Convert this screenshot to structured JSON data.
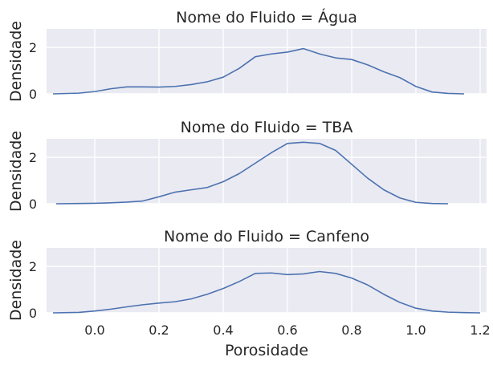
{
  "chart_data": {
    "type": "line",
    "xlabel": "Porosidade",
    "ylabel": "Densidade",
    "xlim": [
      -0.15,
      1.22
    ],
    "ylim": [
      0,
      2.8
    ],
    "x_ticks": [
      "0.0",
      "0.2",
      "0.4",
      "0.6",
      "0.8",
      "1.0",
      "1.2"
    ],
    "x_tick_values": [
      0.0,
      0.2,
      0.4,
      0.6,
      0.8,
      1.0,
      1.2
    ],
    "y_ticks": [
      "0",
      "2"
    ],
    "y_tick_values": [
      0,
      2
    ],
    "grid": true,
    "line_color": "#4c72b0",
    "panels": [
      {
        "title": "Nome do Fluido = Água",
        "x": [
          -0.13,
          -0.05,
          0.0,
          0.05,
          0.1,
          0.15,
          0.2,
          0.25,
          0.3,
          0.35,
          0.4,
          0.45,
          0.5,
          0.55,
          0.6,
          0.65,
          0.7,
          0.75,
          0.8,
          0.85,
          0.9,
          0.95,
          1.0,
          1.05,
          1.1,
          1.15
        ],
        "y": [
          0.0,
          0.03,
          0.1,
          0.22,
          0.3,
          0.3,
          0.29,
          0.32,
          0.4,
          0.52,
          0.72,
          1.1,
          1.6,
          1.72,
          1.8,
          1.95,
          1.72,
          1.55,
          1.48,
          1.25,
          0.95,
          0.7,
          0.32,
          0.08,
          0.02,
          0.0
        ]
      },
      {
        "title": "Nome do Fluido = TBA",
        "x": [
          -0.12,
          -0.05,
          0.0,
          0.05,
          0.1,
          0.15,
          0.2,
          0.25,
          0.3,
          0.35,
          0.4,
          0.45,
          0.5,
          0.55,
          0.6,
          0.65,
          0.7,
          0.75,
          0.8,
          0.85,
          0.9,
          0.95,
          1.0,
          1.05,
          1.1
        ],
        "y": [
          0.0,
          0.01,
          0.02,
          0.04,
          0.07,
          0.12,
          0.3,
          0.5,
          0.6,
          0.7,
          0.95,
          1.3,
          1.75,
          2.2,
          2.6,
          2.65,
          2.6,
          2.3,
          1.7,
          1.1,
          0.6,
          0.25,
          0.06,
          0.01,
          0.0
        ]
      },
      {
        "title": "Nome do Fluido = Canfeno",
        "x": [
          -0.13,
          -0.05,
          0.0,
          0.05,
          0.1,
          0.15,
          0.2,
          0.25,
          0.3,
          0.35,
          0.4,
          0.45,
          0.5,
          0.55,
          0.6,
          0.65,
          0.7,
          0.75,
          0.8,
          0.85,
          0.9,
          0.95,
          1.0,
          1.05,
          1.1,
          1.15,
          1.2
        ],
        "y": [
          0.0,
          0.02,
          0.08,
          0.16,
          0.26,
          0.35,
          0.42,
          0.48,
          0.6,
          0.8,
          1.05,
          1.35,
          1.7,
          1.72,
          1.65,
          1.68,
          1.78,
          1.7,
          1.5,
          1.2,
          0.8,
          0.45,
          0.2,
          0.08,
          0.03,
          0.01,
          0.0
        ]
      }
    ]
  }
}
